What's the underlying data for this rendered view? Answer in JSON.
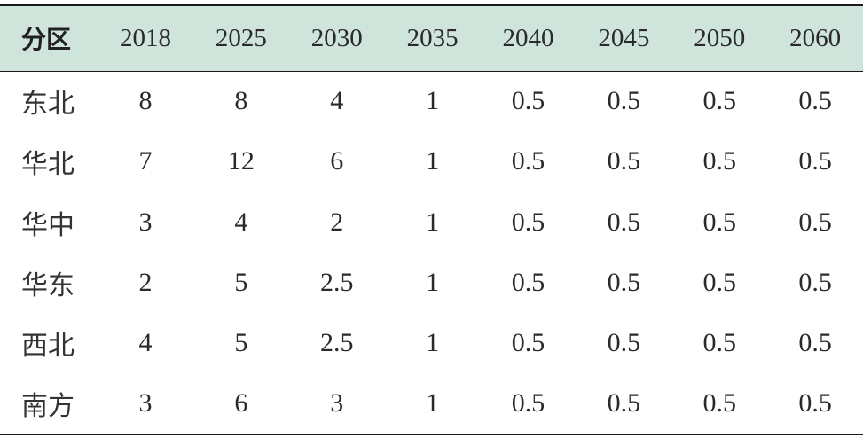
{
  "table": {
    "header": [
      "分区",
      "2018",
      "2025",
      "2030",
      "2035",
      "2040",
      "2045",
      "2050",
      "2060"
    ],
    "rows": [
      [
        "东北",
        "8",
        "8",
        "4",
        "1",
        "0.5",
        "0.5",
        "0.5",
        "0.5"
      ],
      [
        "华北",
        "7",
        "12",
        "6",
        "1",
        "0.5",
        "0.5",
        "0.5",
        "0.5"
      ],
      [
        "华中",
        "3",
        "4",
        "2",
        "1",
        "0.5",
        "0.5",
        "0.5",
        "0.5"
      ],
      [
        "华东",
        "2",
        "5",
        "2.5",
        "1",
        "0.5",
        "0.5",
        "0.5",
        "0.5"
      ],
      [
        "西北",
        "4",
        "5",
        "2.5",
        "1",
        "0.5",
        "0.5",
        "0.5",
        "0.5"
      ],
      [
        "南方",
        "3",
        "6",
        "3",
        "1",
        "0.5",
        "0.5",
        "0.5",
        "0.5"
      ]
    ]
  },
  "colors": {
    "header_background": "#cfe5dc",
    "rule": "#1a1a1a",
    "text": "#2a2a2a"
  }
}
